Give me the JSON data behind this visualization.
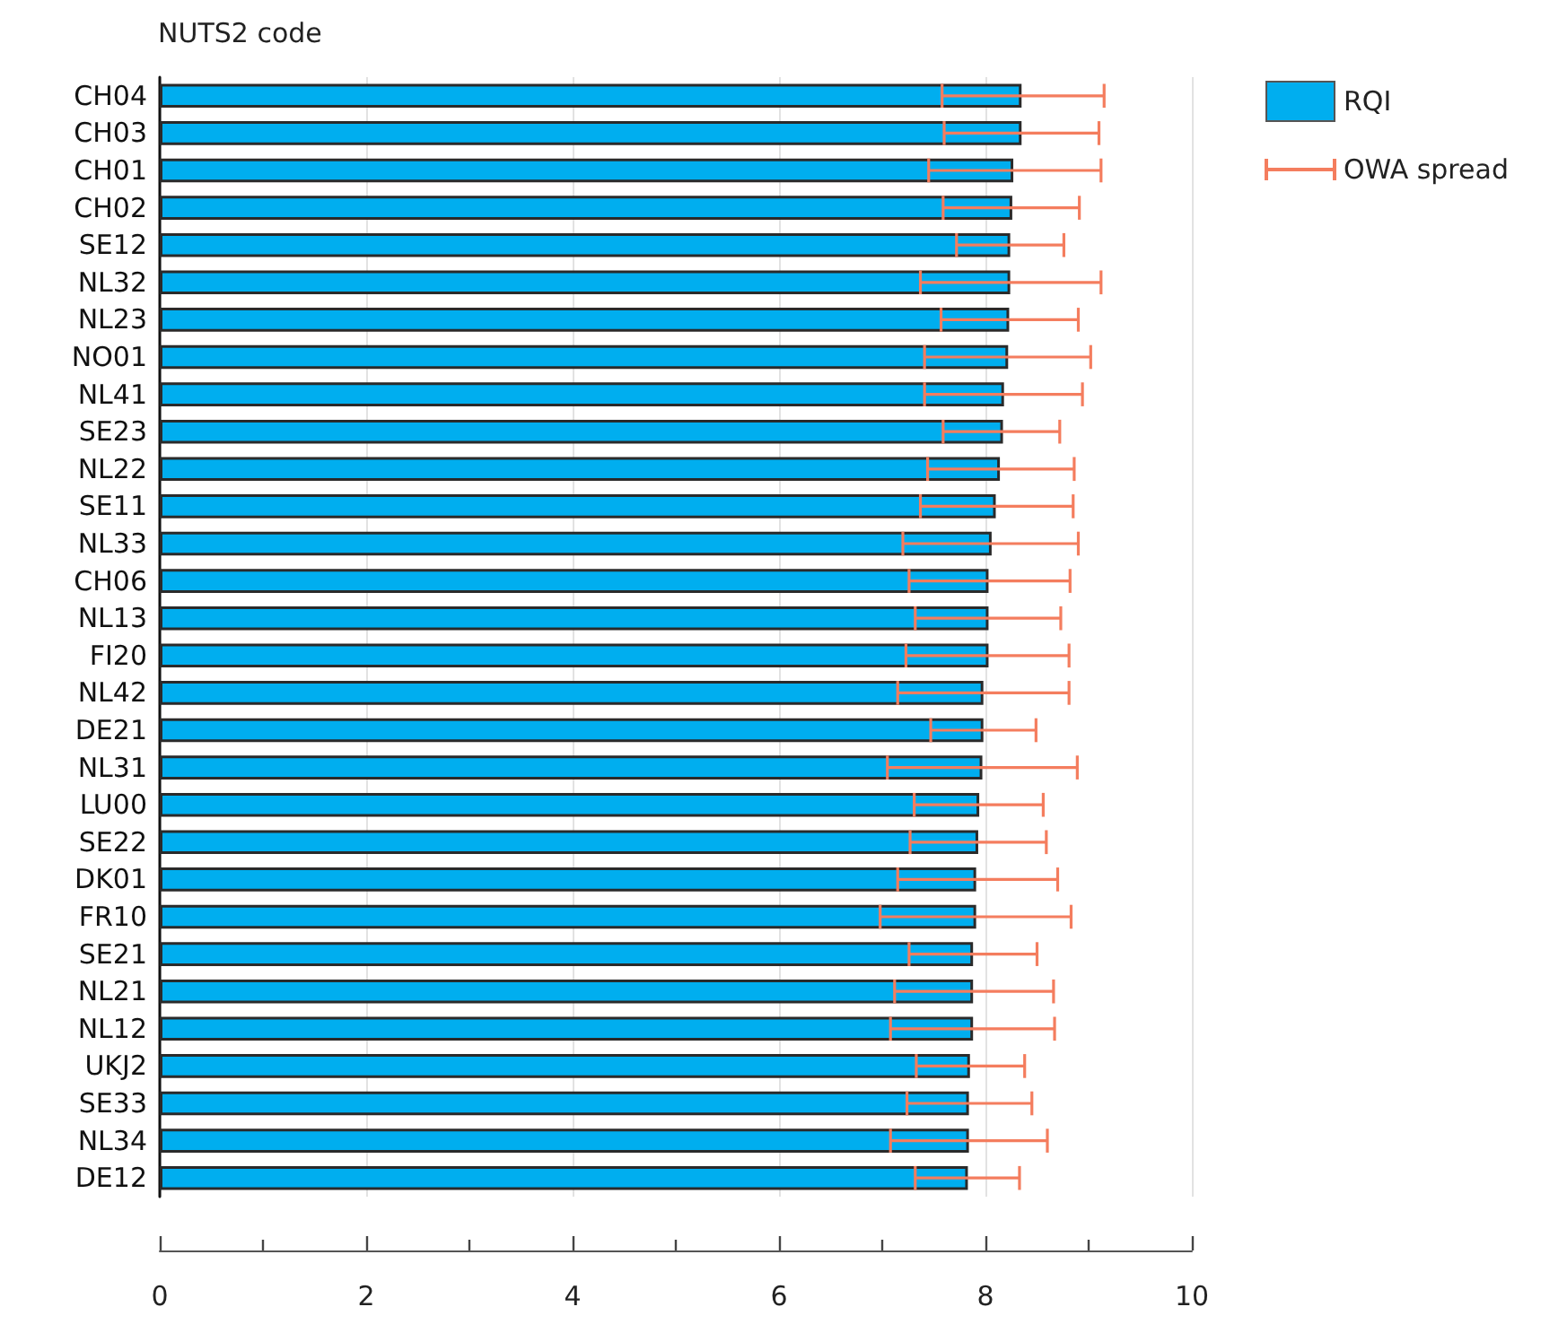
{
  "chart_data": {
    "type": "bar",
    "orientation": "horizontal",
    "ylabel": "NUTS2 code",
    "categories": [
      "CH04",
      "CH03",
      "CH01",
      "CH02",
      "SE12",
      "NL32",
      "NL23",
      "NO01",
      "NL41",
      "SE23",
      "NL22",
      "SE11",
      "NL33",
      "CH06",
      "NL13",
      "FI20",
      "NL42",
      "DE21",
      "NL31",
      "LU00",
      "SE22",
      "DK01",
      "FR10",
      "SE21",
      "NL21",
      "NL12",
      "UKJ2",
      "SE33",
      "NL34",
      "DE12"
    ],
    "series": [
      {
        "name": "RQI",
        "color": "#00aeef",
        "values": [
          8.35,
          8.35,
          8.27,
          8.26,
          8.24,
          8.24,
          8.23,
          8.22,
          8.18,
          8.17,
          8.14,
          8.1,
          8.06,
          8.03,
          8.03,
          8.03,
          7.98,
          7.98,
          7.97,
          7.94,
          7.93,
          7.91,
          7.91,
          7.88,
          7.88,
          7.88,
          7.85,
          7.84,
          7.84,
          7.83
        ],
        "errors": [
          [
            7.58,
            9.15
          ],
          [
            7.6,
            9.1
          ],
          [
            7.45,
            9.12
          ],
          [
            7.59,
            8.91
          ],
          [
            7.72,
            8.76
          ],
          [
            7.37,
            9.12
          ],
          [
            7.57,
            8.9
          ],
          [
            7.41,
            9.02
          ],
          [
            7.41,
            8.94
          ],
          [
            7.59,
            8.72
          ],
          [
            7.44,
            8.86
          ],
          [
            7.37,
            8.85
          ],
          [
            7.2,
            8.9
          ],
          [
            7.26,
            8.82
          ],
          [
            7.32,
            8.73
          ],
          [
            7.23,
            8.81
          ],
          [
            7.15,
            8.81
          ],
          [
            7.47,
            8.49
          ],
          [
            7.05,
            8.89
          ],
          [
            7.31,
            8.56
          ],
          [
            7.27,
            8.59
          ],
          [
            7.15,
            8.7
          ],
          [
            6.98,
            8.83
          ],
          [
            7.26,
            8.5
          ],
          [
            7.12,
            8.66
          ],
          [
            7.08,
            8.67
          ],
          [
            7.33,
            8.38
          ],
          [
            7.24,
            8.45
          ],
          [
            7.08,
            8.6
          ],
          [
            7.32,
            8.33
          ]
        ]
      }
    ],
    "annotations": [
      "OWA spread"
    ],
    "xlim": [
      0,
      10
    ],
    "xticks": [
      0,
      2,
      4,
      6,
      8,
      10
    ],
    "grid": "x",
    "legend": "top right"
  }
}
